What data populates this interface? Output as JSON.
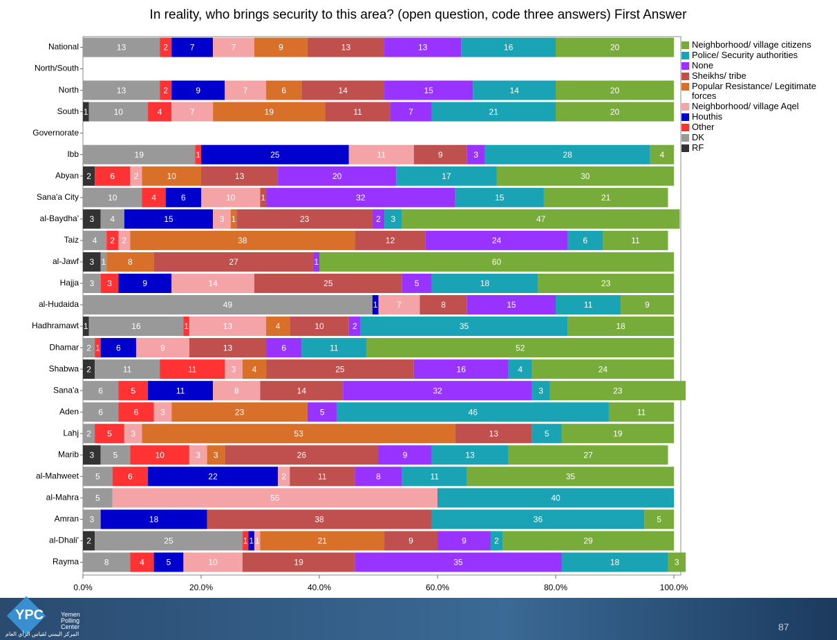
{
  "chart_data": {
    "type": "stacked-barh",
    "title": "In reality, who brings security to this area? (open question, code three answers) First Answer",
    "categories": [
      "National",
      "North/South",
      "North",
      "South",
      "Governorate",
      "Ibb",
      "Abyan",
      "Sana'a City",
      "al-Baydha'",
      "Taiz",
      "al-Jawf",
      "Hajja",
      "al-Hudaida",
      "Hadhramawt",
      "Dhamar",
      "Shabwa",
      "Sana'a",
      "Aden",
      "Lahj",
      "Marib",
      "al-Mahweet",
      "al-Mahra",
      "Amran",
      "al-Dhali'",
      "Rayma"
    ],
    "series": [
      {
        "name": "RF",
        "color": "#333333",
        "values": [
          0,
          null,
          0,
          1,
          null,
          0,
          2,
          0,
          3,
          0,
          3,
          0,
          0,
          1,
          0,
          2,
          0,
          0,
          0,
          3,
          0,
          0,
          0,
          2,
          0
        ]
      },
      {
        "name": "DK",
        "color": "#999999",
        "values": [
          13,
          null,
          13,
          10,
          null,
          19,
          0,
          10,
          4,
          4,
          1,
          3,
          49,
          16,
          2,
          11,
          6,
          6,
          2,
          5,
          5,
          5,
          3,
          25,
          8
        ]
      },
      {
        "name": "Other",
        "color": "#ff3333",
        "values": [
          2,
          null,
          2,
          4,
          null,
          1,
          6,
          4,
          0,
          2,
          0,
          3,
          0,
          1,
          1,
          11,
          5,
          6,
          5,
          10,
          6,
          0,
          0,
          1,
          4
        ]
      },
      {
        "name": "Houthis",
        "color": "#0000cc",
        "values": [
          7,
          null,
          9,
          0,
          null,
          25,
          0,
          6,
          15,
          0,
          0,
          9,
          1,
          0,
          6,
          0,
          11,
          0,
          0,
          0,
          22,
          0,
          18,
          1,
          5
        ]
      },
      {
        "name": "Neighborhood/ village Aqel",
        "color": "#f4a3a6",
        "values": [
          7,
          null,
          7,
          7,
          null,
          11,
          2,
          10,
          3,
          2,
          0,
          14,
          7,
          13,
          9,
          3,
          8,
          3,
          3,
          3,
          2,
          55,
          0,
          1,
          10
        ]
      },
      {
        "name": "Popular Resistance/ Legitimate forces",
        "color": "#d9702a",
        "values": [
          9,
          null,
          6,
          19,
          null,
          0,
          10,
          0,
          1,
          38,
          8,
          0,
          0,
          4,
          0,
          4,
          0,
          23,
          53,
          3,
          0,
          0,
          0,
          21,
          0
        ]
      },
      {
        "name": "Sheikhs/ tribe",
        "color": "#c0504d",
        "values": [
          13,
          null,
          14,
          11,
          null,
          9,
          13,
          1,
          23,
          12,
          27,
          25,
          8,
          10,
          13,
          25,
          14,
          0,
          13,
          26,
          11,
          0,
          38,
          9,
          19
        ]
      },
      {
        "name": "None",
        "color": "#9933ff",
        "values": [
          13,
          null,
          15,
          7,
          null,
          3,
          20,
          32,
          2,
          24,
          1,
          5,
          15,
          2,
          6,
          16,
          32,
          5,
          0,
          9,
          8,
          0,
          0,
          9,
          35
        ]
      },
      {
        "name": "Police/ Security authorities",
        "color": "#1aa3b5",
        "values": [
          16,
          null,
          14,
          21,
          null,
          28,
          17,
          15,
          3,
          6,
          0,
          18,
          11,
          35,
          11,
          4,
          3,
          46,
          5,
          13,
          11,
          40,
          36,
          2,
          18
        ]
      },
      {
        "name": "Neighborhood/ village citizens",
        "color": "#77ac3a",
        "values": [
          20,
          null,
          20,
          20,
          null,
          4,
          30,
          21,
          47,
          11,
          60,
          23,
          9,
          18,
          52,
          24,
          23,
          11,
          19,
          27,
          35,
          0,
          5,
          29,
          3
        ]
      }
    ],
    "xlim": [
      0,
      100
    ],
    "xticks": [
      {
        "value": 0,
        "label": "0.0%"
      },
      {
        "value": 20,
        "label": "20.0%"
      },
      {
        "value": 40,
        "label": "40.0%"
      },
      {
        "value": 60,
        "label": "60.0%"
      },
      {
        "value": 80,
        "label": "80.0%"
      },
      {
        "value": 100,
        "label": "100.0%"
      }
    ],
    "legend": "right"
  },
  "footer": {
    "logo": "YPC",
    "org": "Yemen Polling Center",
    "org_arabic": "المركز اليمني لقياس الرأي العام",
    "page": "87"
  }
}
